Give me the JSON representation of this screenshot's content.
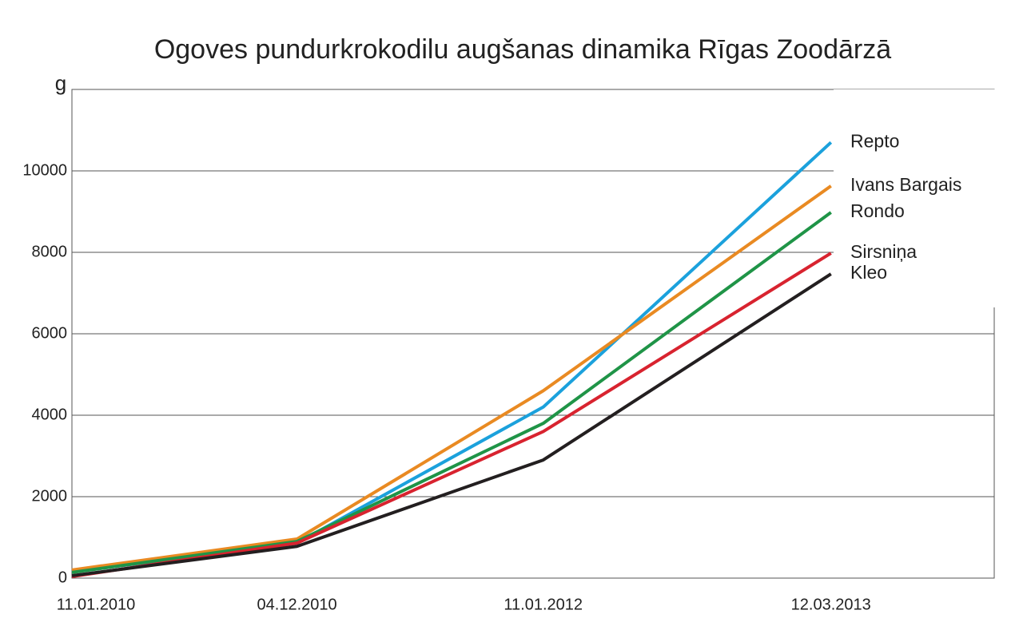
{
  "chart_data": {
    "type": "line",
    "title": "Ogoves pundurkrokodilu augšanas dinamika Rīgas Zoodārzā",
    "y_label": "g",
    "categories": [
      "11.01.2010",
      "04.12.2010",
      "11.01.2012",
      "12.03.2013"
    ],
    "series": [
      {
        "name": "Repto",
        "color": "#1ba1dc",
        "values": [
          150,
          860,
          4200,
          10700
        ]
      },
      {
        "name": "Ivans Bargais",
        "color": "#e98a22",
        "values": [
          200,
          960,
          4600,
          9630
        ]
      },
      {
        "name": "Rondo",
        "color": "#1f9447",
        "values": [
          140,
          900,
          3800,
          8980
        ]
      },
      {
        "name": "Sirsniņa",
        "color": "#d8232f",
        "values": [
          40,
          860,
          3600,
          7980
        ]
      },
      {
        "name": "Kleo",
        "color": "#231f20",
        "values": [
          60,
          780,
          2900,
          7470
        ]
      }
    ],
    "ylim": [
      0,
      12000
    ],
    "yticks": [
      0,
      2000,
      4000,
      6000,
      8000,
      10000
    ],
    "grid": true,
    "legend": "right"
  }
}
